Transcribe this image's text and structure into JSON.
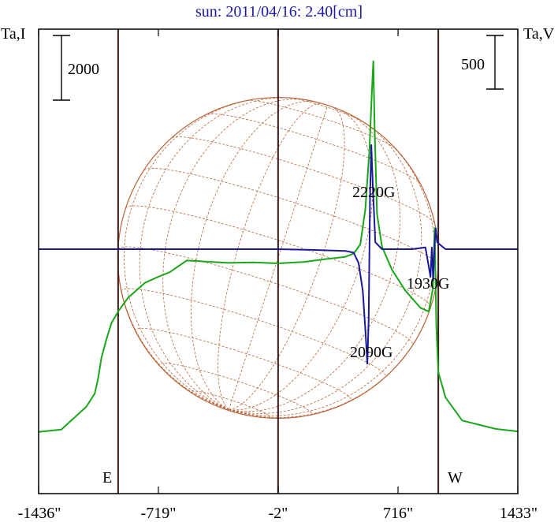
{
  "chart_data": {
    "type": "line",
    "title": "sun: 2011/04/16: 2.40[cm]",
    "left_axis_label": "Ta,I",
    "right_axis_label": "Ta,V",
    "left_scale_label": "2000",
    "right_scale_label": "500",
    "x_ticks": [
      "-1436\"",
      "-719\"",
      "-2\"",
      "716\"",
      "1433\""
    ],
    "xlim": [
      -1436,
      1433
    ],
    "limb_labels": {
      "east": "E",
      "west": "W"
    },
    "vertical_lines_x": [
      -960,
      -2,
      957
    ],
    "disk": {
      "center_x": -2,
      "radius_arcsec": 960
    },
    "grid": "heliographic",
    "colors": {
      "title": "#1a1aa6",
      "intensity": "#1aa61a",
      "polarization": "#1a1a99",
      "disk": "#b8653a",
      "vlines": "#3a1a1a",
      "frame": "#000000"
    },
    "series": [
      {
        "name": "I",
        "axis": "left",
        "points": [
          [
            -1436,
            505
          ],
          [
            -1300,
            555
          ],
          [
            -1150,
            1050
          ],
          [
            -1100,
            1330
          ],
          [
            -1080,
            1650
          ],
          [
            -1060,
            2100
          ],
          [
            -1030,
            2500
          ],
          [
            -1000,
            2850
          ],
          [
            -960,
            3100
          ],
          [
            -900,
            3400
          ],
          [
            -800,
            3720
          ],
          [
            -719,
            3850
          ],
          [
            -650,
            3950
          ],
          [
            -550,
            4200
          ],
          [
            -450,
            4180
          ],
          [
            -300,
            4150
          ],
          [
            -150,
            4160
          ],
          [
            -2,
            4140
          ],
          [
            150,
            4170
          ],
          [
            300,
            4240
          ],
          [
            400,
            4280
          ],
          [
            450,
            4350
          ],
          [
            490,
            4550
          ],
          [
            520,
            5300
          ],
          [
            545,
            6600
          ],
          [
            560,
            7900
          ],
          [
            568,
            8500
          ],
          [
            576,
            7000
          ],
          [
            590,
            5200
          ],
          [
            620,
            4500
          ],
          [
            680,
            4000
          ],
          [
            760,
            3550
          ],
          [
            850,
            3180
          ],
          [
            900,
            3100
          ],
          [
            925,
            3600
          ],
          [
            935,
            4900
          ],
          [
            945,
            2800
          ],
          [
            957,
            1800
          ],
          [
            1000,
            1250
          ],
          [
            1100,
            750
          ],
          [
            1300,
            570
          ],
          [
            1433,
            515
          ]
        ]
      },
      {
        "name": "V",
        "axis": "right",
        "points": [
          [
            -1436,
            0
          ],
          [
            -900,
            0
          ],
          [
            -700,
            0
          ],
          [
            -400,
            0
          ],
          [
            -2,
            0
          ],
          [
            200,
            -2
          ],
          [
            400,
            -5
          ],
          [
            450,
            -10
          ],
          [
            480,
            -40
          ],
          [
            505,
            -120
          ],
          [
            520,
            -230
          ],
          [
            532,
            -330
          ],
          [
            540,
            -200
          ],
          [
            548,
            150
          ],
          [
            556,
            300
          ],
          [
            565,
            180
          ],
          [
            580,
            20
          ],
          [
            620,
            0
          ],
          [
            800,
            0
          ],
          [
            880,
            5
          ],
          [
            900,
            -50
          ],
          [
            910,
            -80
          ],
          [
            918,
            5
          ],
          [
            926,
            -90
          ],
          [
            934,
            10
          ],
          [
            942,
            60
          ],
          [
            950,
            20
          ],
          [
            1000,
            0
          ],
          [
            1200,
            0
          ],
          [
            1433,
            0
          ]
        ]
      }
    ],
    "annotations": [
      "2220G",
      "2090G",
      "1930G"
    ]
  }
}
